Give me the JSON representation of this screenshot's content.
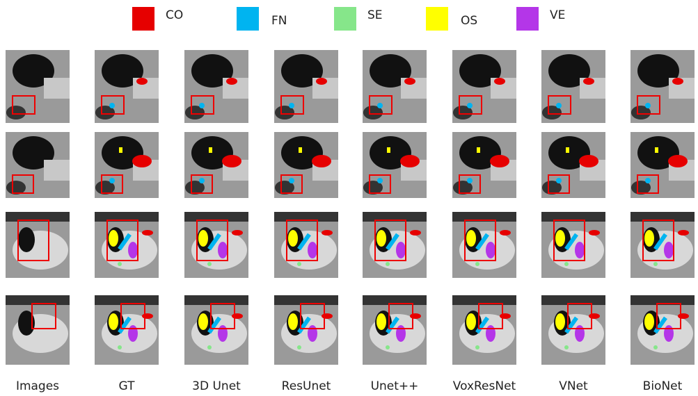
{
  "legend": [
    {
      "label": "CO",
      "color": "#e60000"
    },
    {
      "label": "FN",
      "color": "#00b4f0"
    },
    {
      "label": "SE",
      "color": "#86e68a"
    },
    {
      "label": "OS",
      "color": "#ffff00"
    },
    {
      "label": "VE",
      "color": "#b436e8"
    }
  ],
  "columns": [
    "Images",
    "GT",
    "3D Unet",
    "ResUnet",
    "Unet++",
    "VoxResNet",
    "VNet",
    "BioNet"
  ]
}
